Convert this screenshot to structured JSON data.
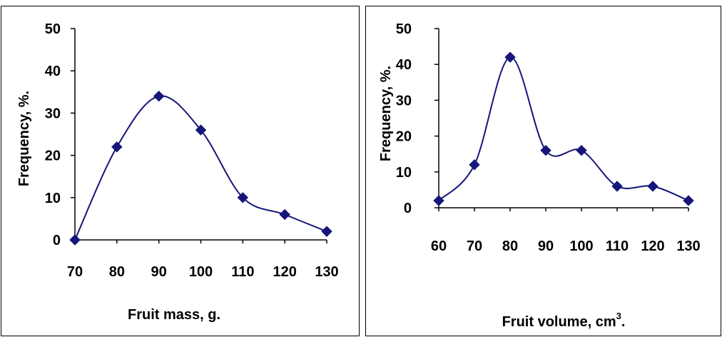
{
  "colors": {
    "series": "#15157a",
    "axis": "#000000",
    "frame": "#000000",
    "background": "#ffffff"
  },
  "chart_data": [
    {
      "type": "line",
      "smooth": true,
      "marker": "diamond",
      "title": "",
      "xlabel": "Fruit mass, g.",
      "ylabel": "Frequency, %.",
      "xlim": [
        70,
        130
      ],
      "ylim": [
        0,
        50
      ],
      "xticks": [
        "70",
        "80",
        "90",
        "100",
        "110",
        "120",
        "130"
      ],
      "yticks": [
        "0",
        "10",
        "20",
        "30",
        "40",
        "50"
      ],
      "grid": false,
      "legend": "none",
      "series": [
        {
          "x": [
            70,
            80,
            90,
            100,
            110,
            120,
            130
          ],
          "y": [
            0,
            22,
            34,
            26,
            10,
            6,
            2
          ]
        }
      ]
    },
    {
      "type": "line",
      "smooth": true,
      "marker": "diamond",
      "title": "",
      "xlabel": "Fruit volume, cm",
      "xlabel_superscript": "3",
      "xlabel_suffix": ".",
      "ylabel": "Frequency, %.",
      "xlim": [
        60,
        130
      ],
      "ylim": [
        0,
        50
      ],
      "xticks": [
        "60",
        "70",
        "80",
        "90",
        "100",
        "110",
        "120",
        "130"
      ],
      "yticks": [
        "0",
        "10",
        "20",
        "30",
        "40",
        "50"
      ],
      "grid": false,
      "legend": "none",
      "series": [
        {
          "x": [
            60,
            70,
            80,
            90,
            100,
            110,
            120,
            130
          ],
          "y": [
            2,
            12,
            42,
            16,
            16,
            6,
            6,
            2
          ]
        }
      ]
    }
  ]
}
